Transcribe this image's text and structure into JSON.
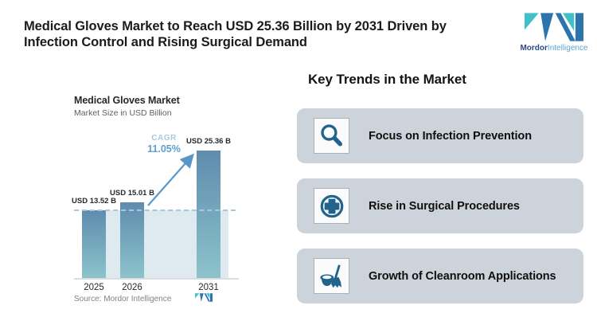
{
  "header": {
    "title_lines": [
      "Medical Gloves Market to Reach USD 25.36 Billion by 2031 Driven by",
      "Infection Control and Rising Surgical Demand"
    ],
    "logo": {
      "brand_bold": "Mordor",
      "brand_light": "Intelligence"
    }
  },
  "chart": {
    "title": "Medical Gloves Market",
    "subtitle": "Market Size in USD Billion",
    "cagr_label": "CAGR",
    "cagr_value": "11.05%",
    "source": "Source: Mordor Intelligence"
  },
  "chart_data": {
    "type": "bar",
    "title": "Medical Gloves Market",
    "ylabel": "Market Size in USD Billion",
    "categories": [
      "2025",
      "2026",
      "2031"
    ],
    "values": [
      13.52,
      15.01,
      25.36
    ],
    "bar_labels": [
      "USD 13.52 B",
      "USD 15.01 B",
      "USD 25.36 B"
    ],
    "annotations": {
      "cagr": "11.05%",
      "reference_line_at": 13.52
    },
    "ylim": [
      0,
      27
    ],
    "grid": "off",
    "legend": "none",
    "colors": {
      "bar_gradient_top": "#5f8cae",
      "bar_gradient_bottom": "#8cc3cb",
      "shaded_area": "#dfe9f0",
      "dashed_line": "#a7c7dc",
      "arrow": "#5b97c6"
    }
  },
  "trends": {
    "heading": "Key Trends in the Market",
    "items": [
      {
        "label": "Focus on Infection Prevention",
        "icon": "magnifier-icon"
      },
      {
        "label": "Rise in Surgical Procedures",
        "icon": "medical-cross-icon"
      },
      {
        "label": "Growth of Cleanroom Applications",
        "icon": "bucket-mop-icon"
      }
    ]
  },
  "colors": {
    "trend_icon_blue": "#20638c",
    "card_background": "#cdd3da",
    "logo_dark_blue": "#2e74ac",
    "logo_teal": "#41c1c7"
  }
}
